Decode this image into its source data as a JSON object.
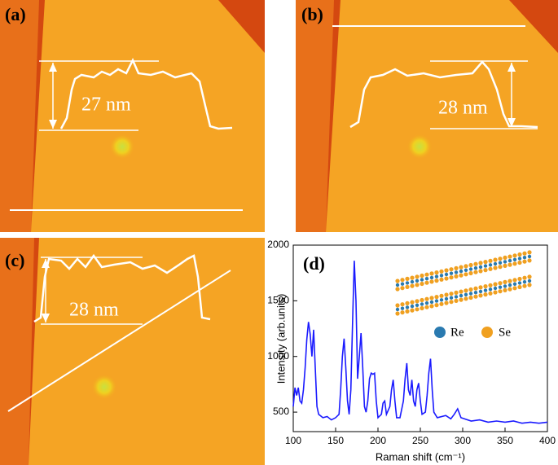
{
  "panels": [
    {
      "label": "(a)",
      "measure": "27 nm"
    },
    {
      "label": "(b)",
      "measure": "28 nm"
    },
    {
      "label": "(c)",
      "measure": "28 nm"
    }
  ],
  "chart_data": {
    "type": "line",
    "panel_label": "(d)",
    "x_label": "Raman shift (cm⁻¹)",
    "y_label": "Intensity (arb.units)",
    "annotations": [
      "Re",
      "Se"
    ],
    "x": [
      100,
      102,
      104,
      106,
      108,
      110,
      112,
      114,
      116,
      118,
      120,
      122,
      124,
      126,
      128,
      130,
      135,
      140,
      145,
      150,
      154,
      156,
      158,
      160,
      162,
      164,
      166,
      168,
      170,
      172,
      174,
      176,
      178,
      180,
      182,
      184,
      186,
      188,
      190,
      192,
      194,
      196,
      198,
      200,
      204,
      206,
      208,
      210,
      214,
      216,
      218,
      220,
      222,
      226,
      230,
      232,
      234,
      236,
      238,
      240,
      242,
      244,
      246,
      248,
      250,
      252,
      256,
      258,
      260,
      262,
      264,
      266,
      270,
      280,
      286,
      290,
      294,
      298,
      310,
      320,
      330,
      340,
      350,
      360,
      370,
      380,
      390,
      400
    ],
    "series": [
      {
        "color": "#1a1aff",
        "values": [
          550,
          720,
          650,
          720,
          600,
          580,
          700,
          900,
          1150,
          1310,
          1200,
          1000,
          1240,
          900,
          550,
          480,
          450,
          460,
          430,
          450,
          480,
          700,
          1000,
          1160,
          900,
          600,
          480,
          700,
          1300,
          1860,
          1500,
          800,
          1000,
          1210,
          900,
          550,
          500,
          600,
          800,
          850,
          840,
          850,
          600,
          450,
          480,
          580,
          600,
          480,
          550,
          700,
          790,
          600,
          450,
          450,
          600,
          800,
          940,
          700,
          650,
          790,
          600,
          550,
          700,
          760,
          600,
          480,
          500,
          650,
          850,
          980,
          700,
          500,
          450,
          470,
          440,
          480,
          530,
          450,
          420,
          430,
          410,
          420,
          410,
          420,
          400,
          410,
          400,
          410
        ]
      }
    ],
    "xlim": [
      100,
      400
    ],
    "xticks": [
      100,
      150,
      200,
      250,
      300,
      350,
      400
    ],
    "ylim": [
      325,
      2000
    ],
    "yticks": [
      500,
      1000,
      1500,
      2000
    ]
  }
}
